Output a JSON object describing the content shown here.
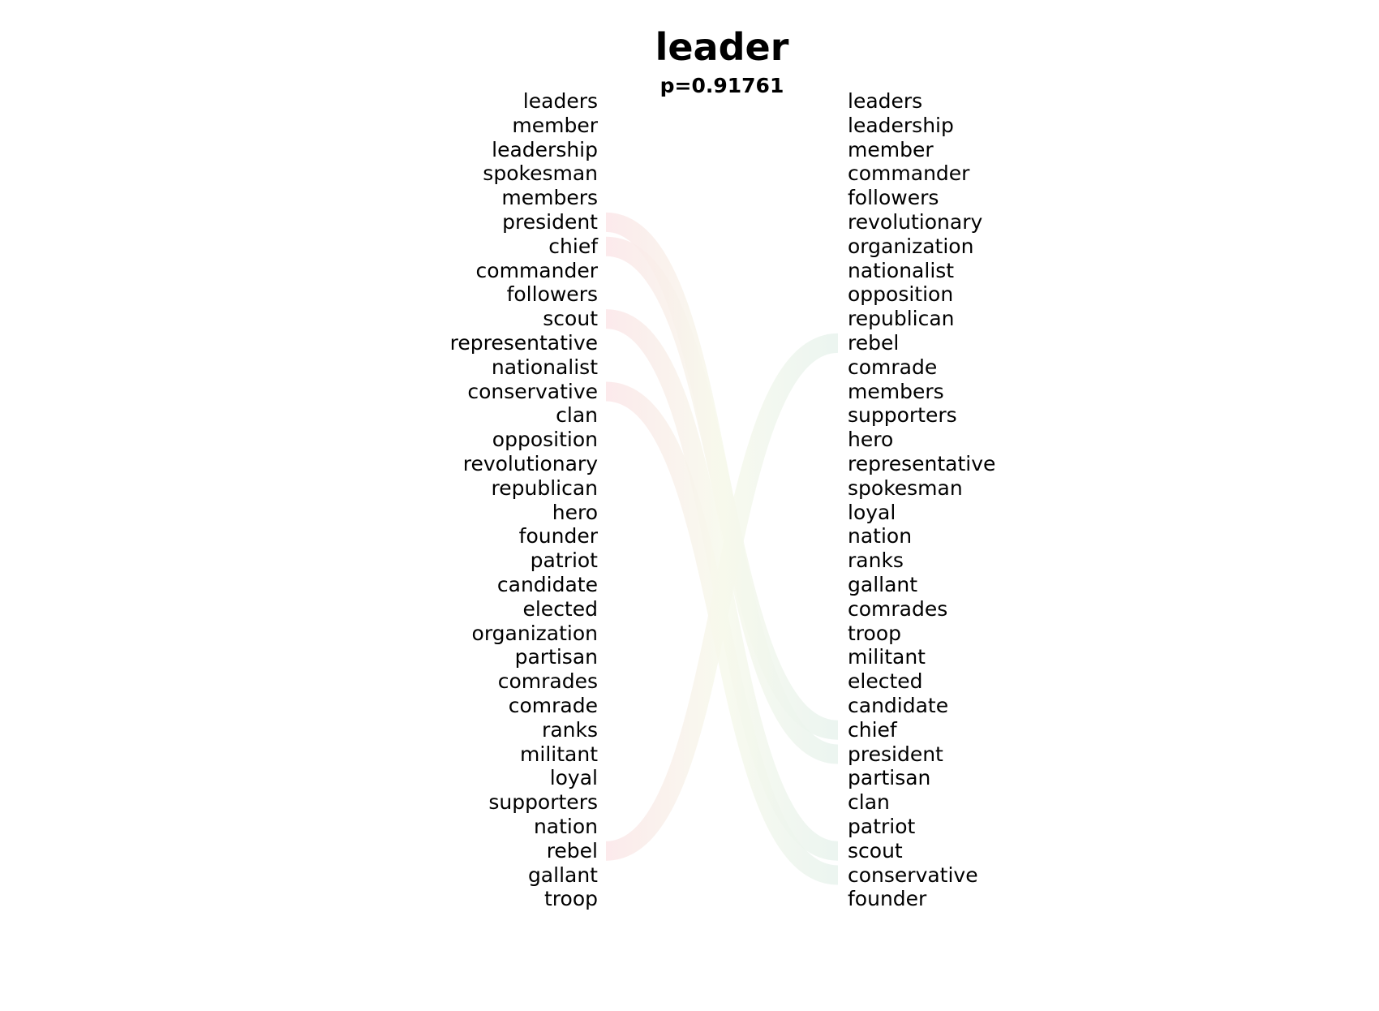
{
  "title": "leader",
  "subtitle": "p=0.91761",
  "colors": {
    "increase": "#e8f3ee",
    "decrease": "#fbe6e8",
    "text": "#000000"
  },
  "left_words": [
    "leaders",
    "member",
    "leadership",
    "spokesman",
    "members",
    "president",
    "chief",
    "commander",
    "followers",
    "scout",
    "representative",
    "nationalist",
    "conservative",
    "clan",
    "opposition",
    "revolutionary",
    "republican",
    "hero",
    "founder",
    "patriot",
    "candidate",
    "elected",
    "organization",
    "partisan",
    "comrades",
    "comrade",
    "ranks",
    "militant",
    "loyal",
    "supporters",
    "nation",
    "rebel",
    "gallant",
    "troop"
  ],
  "right_words": [
    "leaders",
    "leadership",
    "member",
    "commander",
    "followers",
    "revolutionary",
    "organization",
    "nationalist",
    "opposition",
    "republican",
    "rebel",
    "comrade",
    "members",
    "supporters",
    "hero",
    "representative",
    "spokesman",
    "loyal",
    "nation",
    "ranks",
    "gallant",
    "comrades",
    "troop",
    "militant",
    "elected",
    "candidate",
    "chief",
    "president",
    "partisan",
    "clan",
    "patriot",
    "scout",
    "conservative",
    "founder"
  ],
  "highlighted_links": [
    "president",
    "chief",
    "scout",
    "conservative",
    "rebel"
  ]
}
